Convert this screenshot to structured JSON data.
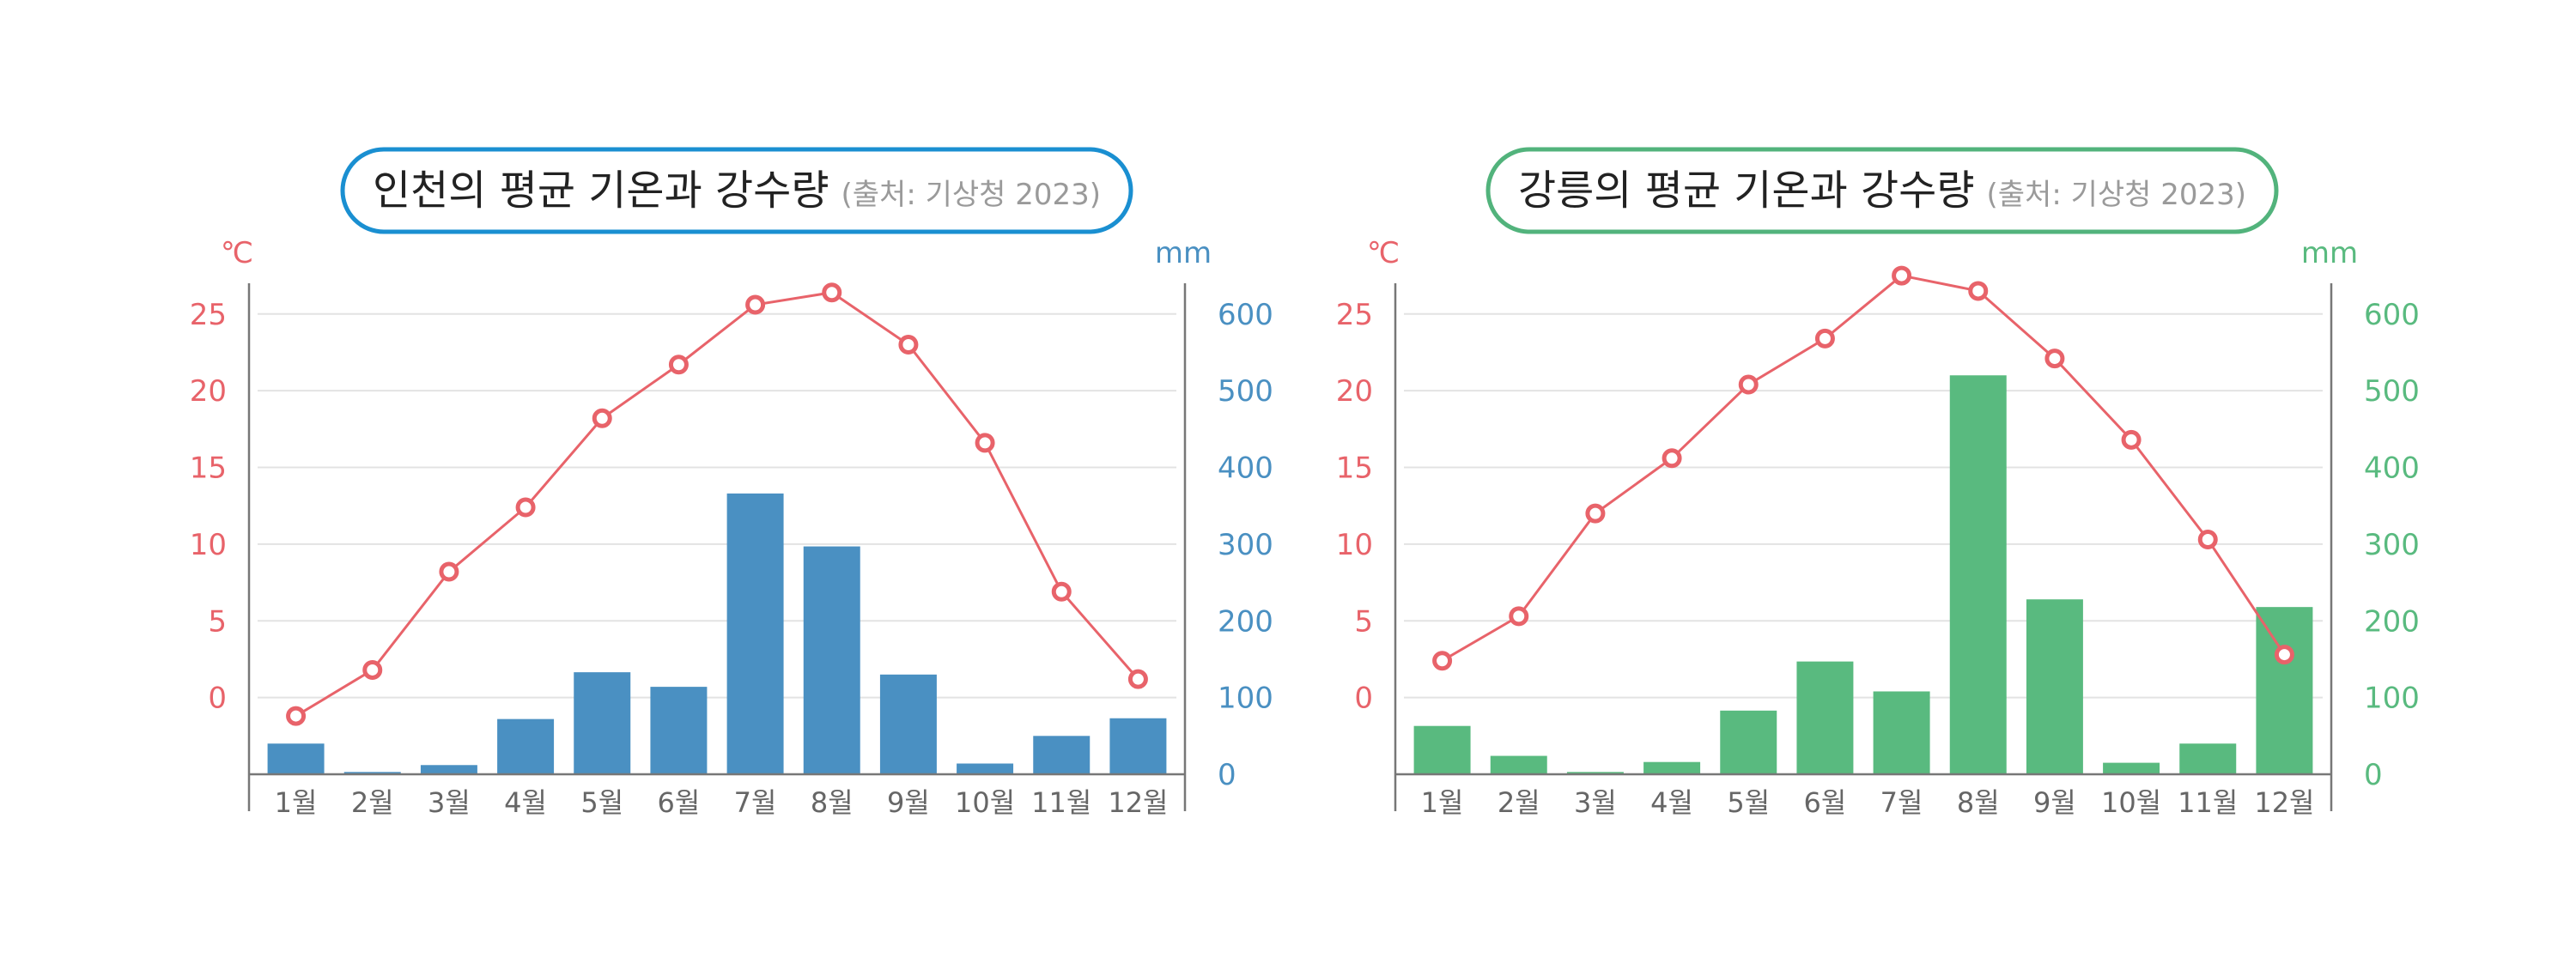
{
  "colors": {
    "temp": "#e8636a",
    "axis": "#777777",
    "grid": "#e3e3e3",
    "month_text": "#666666"
  },
  "chart_data": [
    {
      "type": "bar+line",
      "title": "인천의 평균 기온과 강수량",
      "subtitle": "(출처: 기상청 2023)",
      "accent": "#1a8fd1",
      "bar_color": "#4a90c2",
      "y_left_unit": "℃",
      "y_right_unit": "mm",
      "y_left_ticks": [
        "25",
        "20",
        "15",
        "10",
        "5",
        "0"
      ],
      "y_right_ticks": [
        "600",
        "500",
        "400",
        "300",
        "200",
        "100",
        "0"
      ],
      "categories": [
        "1월",
        "2월",
        "3월",
        "4월",
        "5월",
        "6월",
        "7월",
        "8월",
        "9월",
        "10월",
        "11월",
        "12월"
      ],
      "temperature": [
        -1.2,
        1.8,
        8.2,
        12.4,
        18.2,
        21.7,
        25.6,
        26.4,
        23.0,
        16.6,
        6.9,
        1.2
      ],
      "precipitation": [
        40,
        3,
        12,
        72,
        133,
        114,
        366,
        297,
        130,
        14,
        50,
        73
      ],
      "ylim_left": [
        -5,
        27
      ],
      "ylim_right": [
        0,
        640
      ]
    },
    {
      "type": "bar+line",
      "title": "강릉의 평균 기온과 강수량",
      "subtitle": "(출처: 기상청 2023)",
      "accent": "#52b37c",
      "bar_color": "#59ba7f",
      "y_left_unit": "℃",
      "y_right_unit": "mm",
      "y_left_ticks": [
        "25",
        "20",
        "15",
        "10",
        "5",
        "0"
      ],
      "y_right_ticks": [
        "600",
        "500",
        "400",
        "300",
        "200",
        "100",
        "0"
      ],
      "categories": [
        "1월",
        "2월",
        "3월",
        "4월",
        "5월",
        "6월",
        "7월",
        "8월",
        "9월",
        "10월",
        "11월",
        "12월"
      ],
      "temperature": [
        2.4,
        5.3,
        12.0,
        15.6,
        20.4,
        23.4,
        27.5,
        26.5,
        22.1,
        16.8,
        10.3,
        2.8
      ],
      "precipitation": [
        63,
        24,
        3,
        16,
        83,
        147,
        108,
        520,
        228,
        15,
        40,
        218
      ],
      "ylim_left": [
        -5,
        27
      ],
      "ylim_right": [
        0,
        640
      ]
    }
  ]
}
